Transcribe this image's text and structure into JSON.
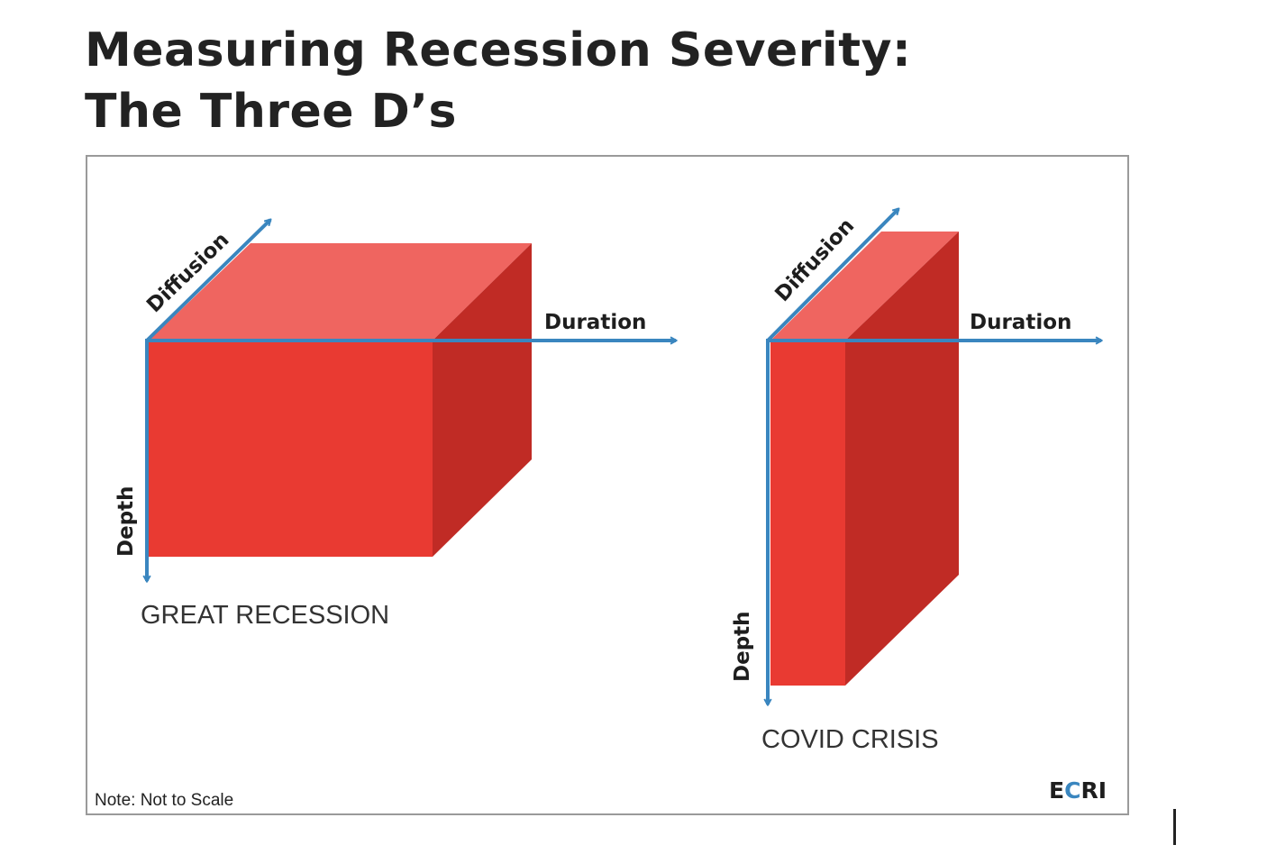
{
  "title": {
    "line1": "Measuring Recession Severity:",
    "line2": "The Three D’s"
  },
  "colors": {
    "front_face": "#e93a32",
    "top_face": "#ef6560",
    "side_face": "#c02b25",
    "arrow": "#3a86bf"
  },
  "diagrams": [
    {
      "id": "great-recession",
      "label": "GREAT RECESSION",
      "axes": {
        "diffusion": "Diffusion",
        "duration": "Duration",
        "depth": "Depth"
      }
    },
    {
      "id": "covid-crisis",
      "label": "COVID CRISIS",
      "axes": {
        "diffusion": "Diffusion",
        "duration": "Duration",
        "depth": "Depth"
      }
    }
  ],
  "note": "Note: Not to Scale",
  "logo": {
    "part1": "E",
    "part2": "C",
    "part3": "RI"
  }
}
